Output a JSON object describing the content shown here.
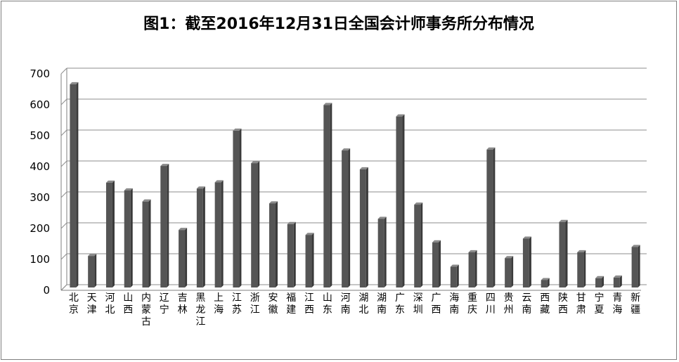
{
  "chart_data": {
    "type": "bar",
    "title": "图1：截至2016年12月31日全国会计师事务所分布情况",
    "xlabel": "",
    "ylabel": "",
    "ylim": [
      0,
      700
    ],
    "yticks": [
      0,
      100,
      200,
      300,
      400,
      500,
      600,
      700
    ],
    "grid": true,
    "legend": "none",
    "colors": {
      "bar": "#555555",
      "grid": "#8c8c8c",
      "axis": "#7f7f7f"
    },
    "categories": [
      "北京",
      "天津",
      "河北",
      "山西",
      "内蒙古",
      "辽宁",
      "吉林",
      "黑龙江",
      "上海",
      "江苏",
      "浙江",
      "安徽",
      "福建",
      "江西",
      "山东",
      "河南",
      "湖北",
      "湖南",
      "广东",
      "深圳",
      "广西",
      "海南",
      "重庆",
      "四川",
      "贵州",
      "云南",
      "西藏",
      "陕西",
      "甘肃",
      "宁夏",
      "青海",
      "新疆"
    ],
    "values": [
      657,
      102,
      339,
      314,
      278,
      393,
      186,
      320,
      340,
      507,
      402,
      272,
      205,
      170,
      590,
      443,
      382,
      222,
      553,
      268,
      146,
      67,
      114,
      446,
      95,
      158,
      24,
      212,
      114,
      30,
      32,
      131
    ]
  }
}
